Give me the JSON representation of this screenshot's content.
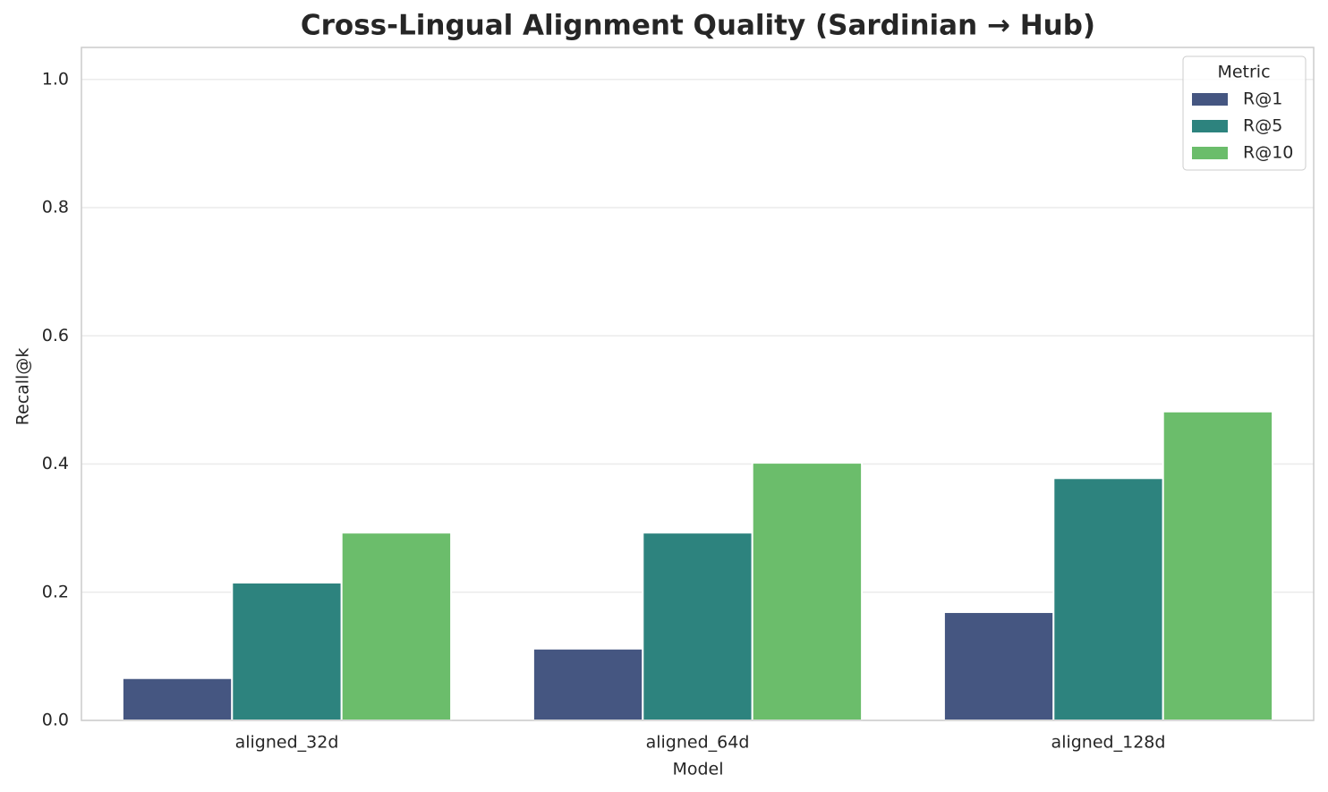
{
  "chart_data": {
    "type": "grouped_bar",
    "title": "Cross-Lingual Alignment Quality (Sardinian → Hub)",
    "x_label": "Model",
    "y_label": "Recall@k",
    "categories": [
      "aligned_32d",
      "aligned_64d",
      "aligned_128d"
    ],
    "legend_title": "Metric",
    "legend_position": "upper right",
    "grid": true,
    "series": [
      {
        "name": "R@1",
        "color": "#455681",
        "values": [
          0.066,
          0.112,
          0.169
        ]
      },
      {
        "name": "R@5",
        "color": "#2d837e",
        "values": [
          0.215,
          0.293,
          0.378
        ]
      },
      {
        "name": "R@10",
        "color": "#6bbd6b",
        "values": [
          0.293,
          0.402,
          0.482
        ]
      }
    ],
    "ylim": [
      0,
      1.05
    ],
    "yticks": [
      {
        "value": 0,
        "label": "0.0"
      },
      0.2,
      0.4,
      0.6,
      0.8,
      {
        "value": 1,
        "label": "1.0"
      }
    ]
  }
}
